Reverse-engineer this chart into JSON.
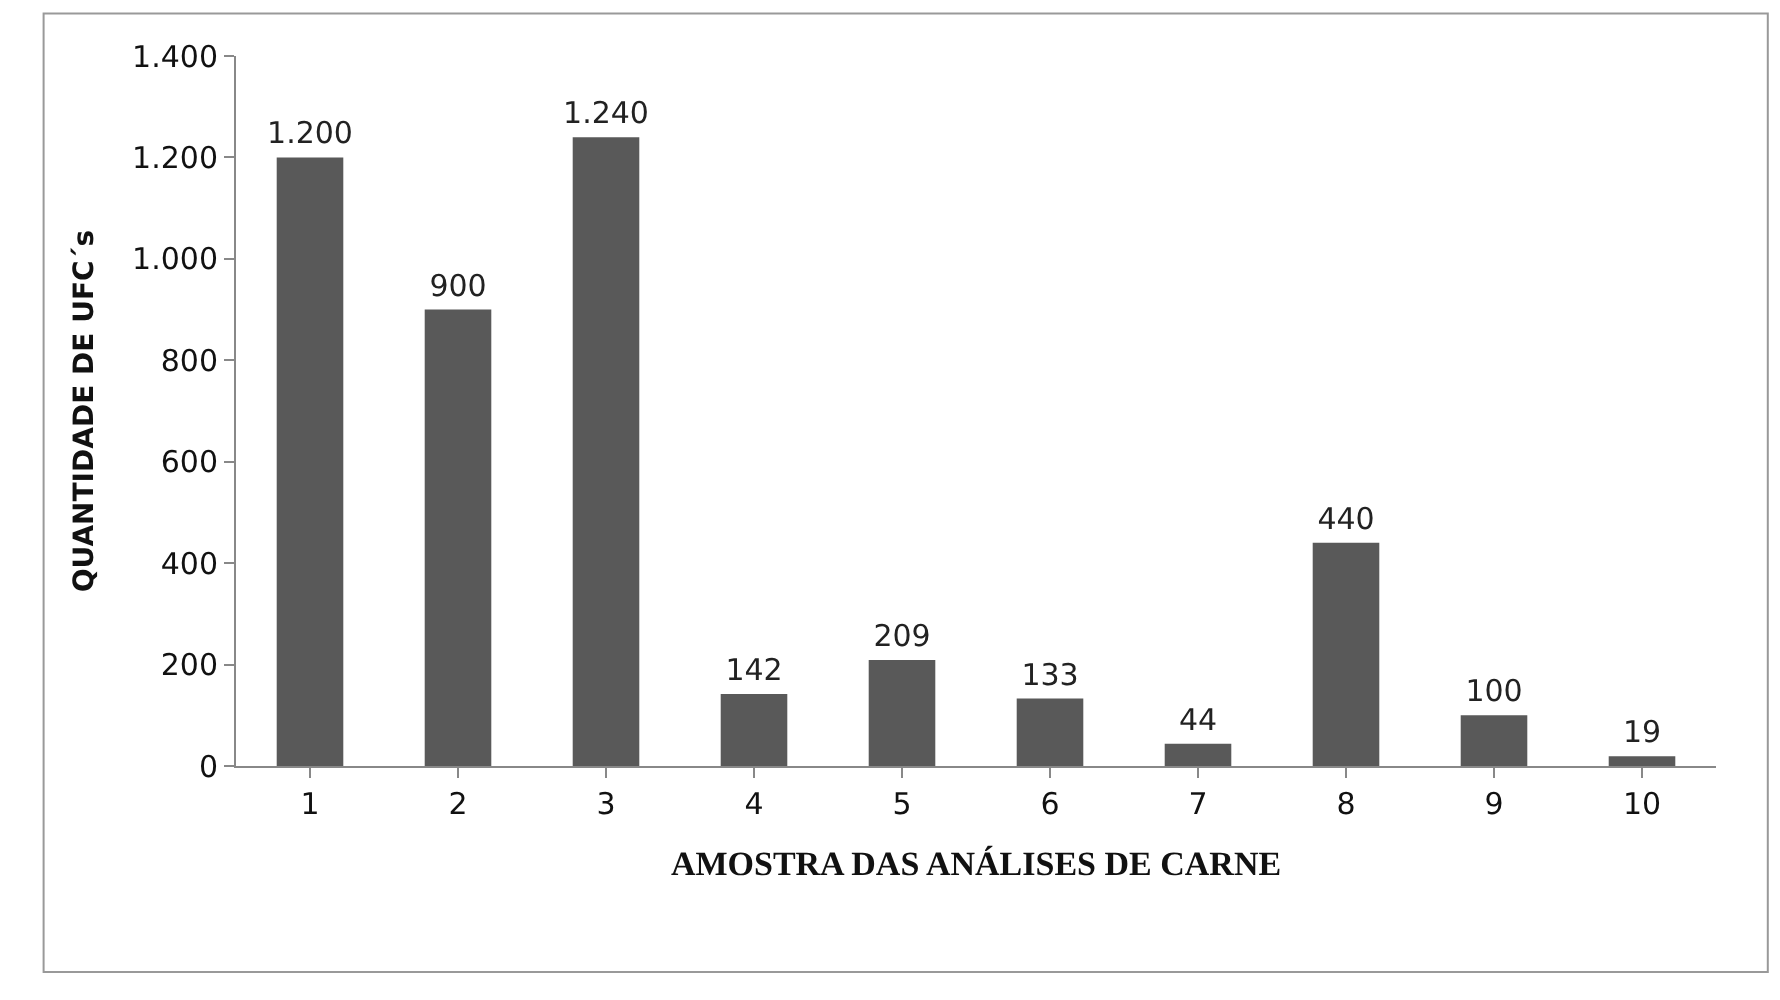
{
  "chart_data": {
    "type": "bar",
    "xlabel": "AMOSTRA DAS ANÁLISES DE CARNE",
    "ylabel": "QUANTIDADE DE UFC´s",
    "categories": [
      "1",
      "2",
      "3",
      "4",
      "5",
      "6",
      "7",
      "8",
      "9",
      "10"
    ],
    "values": [
      1200,
      900,
      1240,
      142,
      209,
      133,
      44,
      440,
      100,
      19
    ],
    "value_labels": [
      "1.200",
      "900",
      "1.240",
      "142",
      "209",
      "133",
      "44",
      "440",
      "100",
      "19"
    ],
    "color": "#595959",
    "ylim": [
      0,
      1400
    ],
    "yticks": [
      0,
      200,
      400,
      600,
      800,
      {
        "value": 1000,
        "label": "1.000"
      },
      {
        "value": 1200,
        "label": "1.200"
      },
      {
        "value": 1400,
        "label": "1.400"
      }
    ],
    "legend": false
  }
}
